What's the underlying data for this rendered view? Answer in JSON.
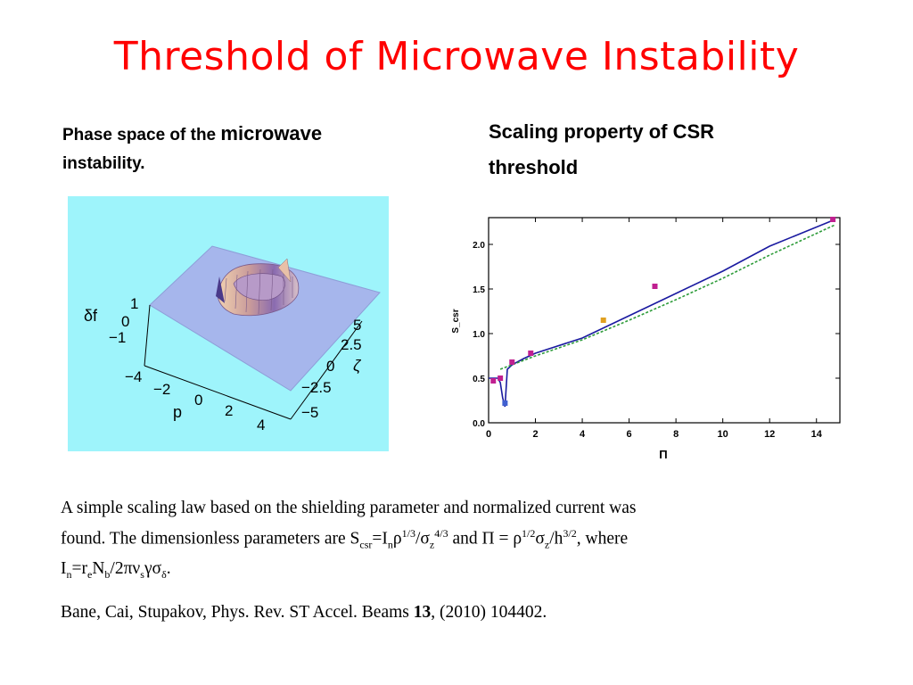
{
  "slide": {
    "title": "Threshold of Microwave Instability",
    "left_caption_a": "Phase space of the ",
    "left_caption_b": "microwave",
    "left_caption_c": "instability.",
    "right_caption_line1": "Scaling property of CSR",
    "right_caption_line2": "threshold"
  },
  "figure3d": {
    "background": "#9ef4fb",
    "z_axis_label": "δf",
    "z_ticks": [
      "1",
      "0",
      "−1"
    ],
    "p_axis_label": "p",
    "p_ticks": [
      "−4",
      "−2",
      "0",
      "2",
      "4"
    ],
    "zeta_axis_label": "ζ",
    "zeta_ticks": [
      "5",
      "2.5",
      "0",
      "−2.5",
      "−5"
    ]
  },
  "chart_data": {
    "type": "line",
    "xlabel": "Π",
    "ylabel": "S_csr",
    "xlim": [
      0,
      15
    ],
    "ylim": [
      0,
      2.3
    ],
    "x_ticks": [
      "0",
      "2",
      "4",
      "6",
      "8",
      "10",
      "12",
      "14"
    ],
    "y_ticks": [
      "0.0",
      "0.5",
      "1.0",
      "1.5",
      "2.0"
    ],
    "series": [
      {
        "color": "#1a1aa0",
        "x": [
          0,
          0.3,
          0.4,
          0.5,
          0.6,
          0.7,
          0.8,
          1,
          1.5,
          2,
          4,
          6,
          8,
          10,
          12,
          14.8
        ],
        "y": [
          0.5,
          0.5,
          0.5,
          0.45,
          0.28,
          0.18,
          0.6,
          0.65,
          0.72,
          0.78,
          0.95,
          1.2,
          1.45,
          1.7,
          1.98,
          2.28
        ]
      },
      {
        "color": "#2e9c3a",
        "x": [
          0.5,
          2,
          4,
          6,
          8,
          10,
          12,
          14.8
        ],
        "y": [
          0.6,
          0.75,
          0.93,
          1.15,
          1.38,
          1.62,
          1.88,
          2.22
        ]
      }
    ],
    "points": [
      {
        "x": 0.2,
        "y": 0.47,
        "color": "#c02090"
      },
      {
        "x": 0.5,
        "y": 0.5,
        "color": "#c02090"
      },
      {
        "x": 0.7,
        "y": 0.22,
        "color": "#4060d0"
      },
      {
        "x": 1.0,
        "y": 0.68,
        "color": "#c02090"
      },
      {
        "x": 1.8,
        "y": 0.78,
        "color": "#c02090"
      },
      {
        "x": 4.9,
        "y": 1.15,
        "color": "#e0a020"
      },
      {
        "x": 7.1,
        "y": 1.53,
        "color": "#c02090"
      },
      {
        "x": 14.7,
        "y": 2.28,
        "color": "#c02090"
      }
    ]
  },
  "body": {
    "line1": "A simple scaling law based on the shielding parameter and normalized current  was",
    "line2_prefix": "found. The dimensionless parameters are S",
    "sub_csr": "csr",
    "eq_I": "=I",
    "sub_n": "n",
    "rho": "ρ",
    "sup_13": "1/3",
    "slash_sigma": "/σ",
    "sub_z": "z",
    "sup_43": "4/3",
    "and_pi": " and Π = ρ",
    "sup_12": "1/2",
    "sigma": "σ",
    "sub_z2": "z",
    "slash_h": "/h",
    "sup_32": "3/2",
    "where": ", where",
    "line3_I": "I",
    "sub_n2": "n",
    "eq_r": "=r",
    "sub_e": "e",
    "N": "N",
    "sub_b": "b",
    "two_pi_nu": "/2πν",
    "sub_s": "s",
    "gamma_sigma": "γσ",
    "sub_delta": "δ",
    "end": "."
  },
  "reference": {
    "authors": "Bane, Cai, Stupakov, Phys. Rev. ST Accel. Beams ",
    "volume": "13",
    "rest": ", (2010) 104402."
  }
}
